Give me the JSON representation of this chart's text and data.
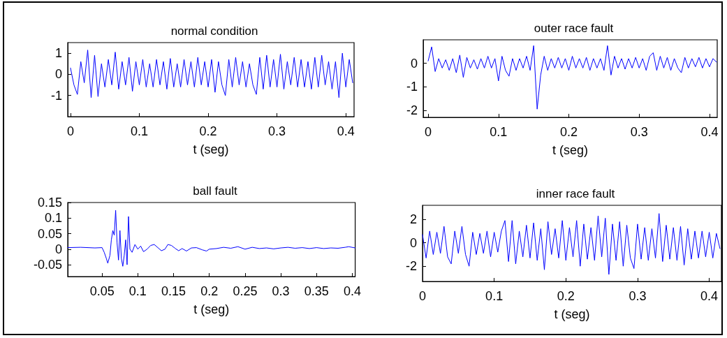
{
  "chart_data": [
    {
      "type": "line",
      "title": "normal condition",
      "xlabel": "t (seg)",
      "xlim": [
        -0.004,
        0.412
      ],
      "xticks": [
        0,
        0.1,
        0.2,
        0.3,
        0.4
      ],
      "ylim": [
        -2,
        1.5
      ],
      "yticks": [
        -1,
        0,
        1
      ],
      "grid": false,
      "marker": "none",
      "line_style": "solid",
      "x": [
        0,
        0.005,
        0.01,
        0.015,
        0.02,
        0.025,
        0.03,
        0.035,
        0.04,
        0.045,
        0.05,
        0.055,
        0.06,
        0.065,
        0.07,
        0.075,
        0.08,
        0.085,
        0.09,
        0.095,
        0.1,
        0.105,
        0.11,
        0.115,
        0.12,
        0.125,
        0.13,
        0.135,
        0.14,
        0.145,
        0.15,
        0.155,
        0.16,
        0.165,
        0.17,
        0.175,
        0.18,
        0.185,
        0.19,
        0.195,
        0.2,
        0.205,
        0.21,
        0.215,
        0.22,
        0.225,
        0.23,
        0.235,
        0.24,
        0.245,
        0.25,
        0.255,
        0.26,
        0.265,
        0.27,
        0.275,
        0.28,
        0.285,
        0.29,
        0.295,
        0.3,
        0.305,
        0.31,
        0.315,
        0.32,
        0.325,
        0.33,
        0.335,
        0.34,
        0.345,
        0.35,
        0.355,
        0.36,
        0.365,
        0.37,
        0.375,
        0.38,
        0.385,
        0.39,
        0.395,
        0.4,
        0.405,
        0.41
      ],
      "series": [
        {
          "color": "#0000ff",
          "values": [
            0.3,
            -0.5,
            -0.95,
            0.6,
            -0.4,
            1.15,
            -1.1,
            0.9,
            -1.05,
            0.5,
            -0.6,
            0.7,
            -0.5,
            1.05,
            -0.7,
            0.6,
            -0.5,
            0.8,
            -0.8,
            0.6,
            -0.5,
            0.7,
            -0.6,
            0.5,
            -0.6,
            0.7,
            -0.5,
            0.6,
            -0.7,
            0.75,
            -0.6,
            0.5,
            -0.6,
            0.7,
            -0.5,
            0.6,
            -0.6,
            0.8,
            -0.5,
            0.6,
            -0.6,
            0.7,
            -0.85,
            0.6,
            -0.5,
            -1.0,
            0.7,
            -0.6,
            0.8,
            -0.5,
            0.6,
            -0.6,
            0.5,
            -0.5,
            -0.95,
            0.8,
            -0.7,
            0.9,
            -0.6,
            0.7,
            -0.6,
            0.95,
            -0.7,
            0.6,
            -0.5,
            0.8,
            -0.6,
            0.7,
            -0.6,
            0.6,
            -0.7,
            0.8,
            -0.6,
            0.9,
            -0.5,
            0.6,
            -0.7,
            0.6,
            -1.1,
            1.0,
            -0.6,
            0.7,
            -0.4
          ]
        }
      ]
    },
    {
      "type": "line",
      "title": "outer race fault",
      "xlabel": "t (seg)",
      "xlim": [
        -0.007,
        0.411
      ],
      "xticks": [
        0,
        0.1,
        0.2,
        0.3,
        0.4
      ],
      "ylim": [
        -2.3,
        1
      ],
      "yticks": [
        -2,
        -1,
        0
      ],
      "grid": false,
      "marker": "none",
      "line_style": "solid",
      "x": [
        0,
        0.005,
        0.01,
        0.015,
        0.02,
        0.025,
        0.03,
        0.035,
        0.04,
        0.045,
        0.05,
        0.055,
        0.06,
        0.065,
        0.07,
        0.075,
        0.08,
        0.085,
        0.09,
        0.095,
        0.1,
        0.105,
        0.11,
        0.115,
        0.12,
        0.125,
        0.13,
        0.135,
        0.14,
        0.145,
        0.15,
        0.155,
        0.16,
        0.165,
        0.17,
        0.175,
        0.18,
        0.185,
        0.19,
        0.195,
        0.2,
        0.205,
        0.21,
        0.215,
        0.22,
        0.225,
        0.23,
        0.235,
        0.24,
        0.245,
        0.25,
        0.255,
        0.26,
        0.265,
        0.27,
        0.275,
        0.28,
        0.285,
        0.29,
        0.295,
        0.3,
        0.305,
        0.31,
        0.315,
        0.32,
        0.325,
        0.33,
        0.335,
        0.34,
        0.345,
        0.35,
        0.355,
        0.36,
        0.365,
        0.37,
        0.375,
        0.38,
        0.385,
        0.39,
        0.395,
        0.4,
        0.405,
        0.41
      ],
      "series": [
        {
          "color": "#0000ff",
          "values": [
            0.1,
            0.7,
            -0.35,
            0.2,
            -0.2,
            0.15,
            -0.3,
            0.2,
            -0.4,
            0.35,
            -0.6,
            0.25,
            -0.2,
            0.15,
            -0.25,
            0.2,
            -0.2,
            0.3,
            -0.2,
            0.2,
            -0.75,
            0.3,
            -0.3,
            -0.55,
            0.2,
            -0.3,
            0.2,
            -0.2,
            0.3,
            -0.3,
            0.75,
            -1.95,
            -0.5,
            0.3,
            -0.3,
            0.2,
            -0.2,
            0.25,
            -0.2,
            0.2,
            -0.3,
            0.3,
            -0.2,
            0.2,
            -0.2,
            0.25,
            -0.3,
            0.2,
            -0.2,
            0.2,
            -0.3,
            0.75,
            -0.5,
            0.3,
            -0.2,
            0.2,
            -0.25,
            0.2,
            -0.2,
            0.25,
            -0.2,
            0.2,
            -0.3,
            0.3,
            0.45,
            -0.3,
            0.3,
            -0.2,
            0.25,
            -0.3,
            0.2,
            -0.2,
            -0.4,
            0.25,
            -0.2,
            0.2,
            -0.15,
            0.25,
            -0.2,
            0.2,
            -0.15,
            0.2,
            0.05
          ]
        }
      ]
    },
    {
      "type": "line",
      "title": "ball fault",
      "xlabel": "t (seg)",
      "xlim": [
        0.002,
        0.404
      ],
      "xticks": [
        0.05,
        0.1,
        0.15,
        0.2,
        0.25,
        0.3,
        0.35,
        0.4
      ],
      "ylim": [
        -0.088,
        0.15
      ],
      "yticks": [
        -0.05,
        0,
        0.05,
        0.1,
        0.15
      ],
      "grid": false,
      "marker": "none",
      "line_style": "solid",
      "x": [
        0.002,
        0.02,
        0.04,
        0.05,
        0.053,
        0.056,
        0.058,
        0.061,
        0.063,
        0.065,
        0.067,
        0.069,
        0.071,
        0.073,
        0.075,
        0.077,
        0.079,
        0.081,
        0.083,
        0.085,
        0.087,
        0.089,
        0.092,
        0.096,
        0.1,
        0.104,
        0.108,
        0.113,
        0.118,
        0.123,
        0.128,
        0.133,
        0.138,
        0.142,
        0.147,
        0.152,
        0.157,
        0.162,
        0.168,
        0.175,
        0.182,
        0.19,
        0.196,
        0.2,
        0.21,
        0.22,
        0.23,
        0.24,
        0.25,
        0.26,
        0.27,
        0.28,
        0.29,
        0.3,
        0.31,
        0.32,
        0.33,
        0.34,
        0.35,
        0.36,
        0.37,
        0.38,
        0.39,
        0.395,
        0.404
      ],
      "series": [
        {
          "color": "#0000ff",
          "values": [
            0.005,
            0.006,
            0.004,
            0.005,
            -0.01,
            -0.03,
            -0.045,
            -0.02,
            0.03,
            0.06,
            0.045,
            0.125,
            0.02,
            -0.035,
            0.06,
            -0.03,
            -0.055,
            -0.02,
            0.03,
            -0.05,
            0.105,
            0.0,
            -0.01,
            0.015,
            0.0,
            0.01,
            -0.008,
            0.0,
            0.012,
            0.015,
            0.005,
            -0.005,
            0.0,
            0.015,
            0.012,
            0.003,
            -0.005,
            0.002,
            -0.006,
            0.004,
            0.005,
            -0.002,
            -0.006,
            0.0,
            0.002,
            0.006,
            0.003,
            0.008,
            0.0,
            0.006,
            0.002,
            0.004,
            0.001,
            0.004,
            0.006,
            0.003,
            0.005,
            0.002,
            0.005,
            0.002,
            0.004,
            0.003,
            0.006,
            0.008,
            0.004
          ]
        }
      ]
    },
    {
      "type": "line",
      "title": "inner race fault",
      "xlabel": "t (seg)",
      "xlim": [
        0,
        0.417
      ],
      "xticks": [
        0,
        0.1,
        0.2,
        0.3,
        0.4
      ],
      "ylim": [
        -3.3,
        3.2
      ],
      "yticks": [
        -2,
        0,
        2
      ],
      "grid": false,
      "marker": "none",
      "line_style": "solid",
      "x": [
        0,
        0.005,
        0.01,
        0.015,
        0.02,
        0.025,
        0.03,
        0.035,
        0.04,
        0.045,
        0.05,
        0.055,
        0.06,
        0.065,
        0.07,
        0.075,
        0.08,
        0.085,
        0.09,
        0.095,
        0.1,
        0.105,
        0.11,
        0.115,
        0.12,
        0.125,
        0.13,
        0.135,
        0.14,
        0.145,
        0.15,
        0.155,
        0.16,
        0.165,
        0.17,
        0.175,
        0.18,
        0.185,
        0.19,
        0.195,
        0.2,
        0.205,
        0.21,
        0.215,
        0.22,
        0.225,
        0.23,
        0.235,
        0.24,
        0.245,
        0.25,
        0.255,
        0.26,
        0.265,
        0.27,
        0.275,
        0.28,
        0.285,
        0.29,
        0.295,
        0.3,
        0.305,
        0.31,
        0.315,
        0.32,
        0.325,
        0.33,
        0.335,
        0.34,
        0.345,
        0.35,
        0.355,
        0.36,
        0.365,
        0.37,
        0.375,
        0.38,
        0.385,
        0.39,
        0.395,
        0.4,
        0.405,
        0.41,
        0.415
      ],
      "series": [
        {
          "color": "#0000ff",
          "values": [
            0.7,
            -1.3,
            1.0,
            -1.0,
            0.9,
            -0.9,
            1.4,
            -1.2,
            -1.8,
            1.0,
            -0.9,
            1.4,
            -1.0,
            -2.0,
            0.9,
            -1.0,
            0.8,
            -0.9,
            1.0,
            -1.2,
            0.9,
            -0.8,
            1.0,
            1.9,
            -1.6,
            1.9,
            -1.8,
            1.0,
            -1.2,
            1.5,
            -1.3,
            1.7,
            -1.5,
            1.2,
            -2.3,
            1.8,
            -1.0,
            1.2,
            -1.3,
            1.9,
            -1.5,
            1.3,
            -1.2,
            1.9,
            -2.0,
            1.6,
            -1.4,
            1.3,
            -1.5,
            2.3,
            -1.2,
            2.1,
            -2.7,
            1.6,
            -1.5,
            1.8,
            -2.0,
            1.5,
            -1.3,
            -2.2,
            1.6,
            -1.4,
            1.3,
            -1.5,
            1.2,
            -1.3,
            2.5,
            -1.6,
            1.5,
            -1.4,
            1.3,
            -1.5,
            1.4,
            -1.9,
            1.2,
            -1.4,
            1.0,
            -1.3,
            1.0,
            -1.2,
            0.9,
            -1.3,
            0.8,
            -0.5
          ]
        }
      ]
    }
  ]
}
